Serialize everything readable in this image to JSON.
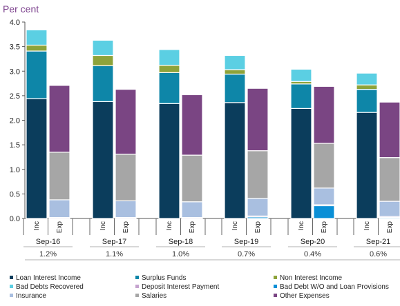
{
  "chart_data": {
    "type": "bar",
    "stacked": true,
    "ylabel": "Per cent",
    "ylim": [
      0,
      4.0
    ],
    "yticks": [
      "0.0",
      "0.5",
      "1.0",
      "1.5",
      "2.0",
      "2.5",
      "3.0",
      "3.5",
      "4.0"
    ],
    "bar_labels": [
      "Inc",
      "Exp"
    ],
    "groups": [
      {
        "label": "Sep-16",
        "spread": "1.2%"
      },
      {
        "label": "Sep-17",
        "spread": "1.1%"
      },
      {
        "label": "Sep-18",
        "spread": "1.0%"
      },
      {
        "label": "Sep-19",
        "spread": "0.7%"
      },
      {
        "label": "Sep-20",
        "spread": "0.4%"
      },
      {
        "label": "Sep-21",
        "spread": "0.6%"
      }
    ],
    "income_series": [
      {
        "name": "Loan Interest Income",
        "color": "#0b3d5c",
        "values": [
          2.44,
          2.38,
          2.34,
          2.36,
          2.24,
          2.16
        ]
      },
      {
        "name": "Surplus Funds",
        "color": "#0e86a8",
        "values": [
          0.97,
          0.73,
          0.63,
          0.58,
          0.5,
          0.47
        ]
      },
      {
        "name": "Non Interest Income",
        "color": "#8da33a",
        "values": [
          0.12,
          0.21,
          0.15,
          0.09,
          0.05,
          0.09
        ]
      },
      {
        "name": "Bad Debts Recovered",
        "color": "#5bcfe3",
        "values": [
          0.31,
          0.31,
          0.32,
          0.29,
          0.25,
          0.24
        ]
      }
    ],
    "expense_series": [
      {
        "name": "Bad Debt W/O and Loan Provisions",
        "color": "#0a8fd6",
        "values": [
          0.0,
          0.0,
          0.0,
          0.03,
          0.26,
          0.02
        ]
      },
      {
        "name": "Deposit Interest Payment",
        "color": "#c5a3cf",
        "values": [
          0.02,
          0.02,
          0.02,
          0.02,
          0.02,
          0.02
        ]
      },
      {
        "name": "Insurance",
        "color": "#a9bfe0",
        "values": [
          0.36,
          0.34,
          0.32,
          0.36,
          0.34,
          0.31
        ]
      },
      {
        "name": "Salaries",
        "color": "#a6a6a6",
        "values": [
          0.97,
          0.95,
          0.95,
          0.97,
          0.91,
          0.89
        ]
      },
      {
        "name": "Other Expenses",
        "color": "#7a4583",
        "values": [
          1.36,
          1.32,
          1.23,
          1.27,
          1.16,
          1.13
        ]
      }
    ],
    "legend": [
      "Loan Interest Income",
      "Surplus Funds",
      "Non Interest Income",
      "Bad Debts Recovered",
      "Deposit Interest Payment",
      "Bad Debt W/O and Loan Provisions",
      "Insurance",
      "Salaries",
      "Other Expenses"
    ],
    "legend_placement": "bottom",
    "grid": false
  },
  "colors": {
    "Loan Interest Income": "#0b3d5c",
    "Surplus Funds": "#0e86a8",
    "Non Interest Income": "#8da33a",
    "Bad Debts Recovered": "#5bcfe3",
    "Deposit Interest Payment": "#c5a3cf",
    "Bad Debt W/O and Loan Provisions": "#0a8fd6",
    "Insurance": "#a9bfe0",
    "Salaries": "#a6a6a6",
    "Other Expenses": "#7a4583"
  }
}
